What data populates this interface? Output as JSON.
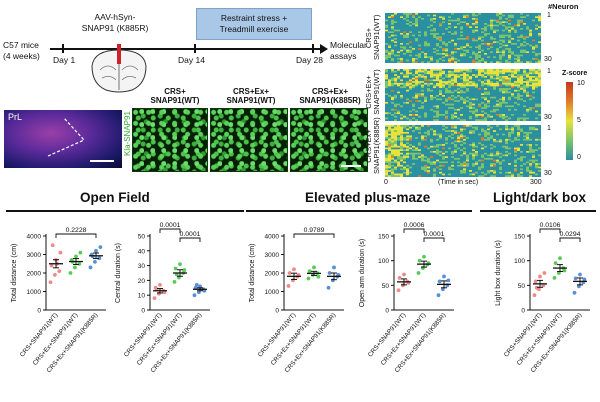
{
  "timeline": {
    "mice": [
      "C57 mice",
      "(4 weeks)"
    ],
    "virus": [
      "AAV-hSyn-",
      "SNAP91 (K885R)"
    ],
    "box": [
      "Restraint stress +",
      "Treadmill exercise"
    ],
    "end": [
      "Molecular",
      "assays"
    ],
    "days": [
      "Day 1",
      "Day 14",
      "Day 28"
    ]
  },
  "micrographs": {
    "prl_label": "PrL",
    "stain_label": "Kla-SNAP91",
    "panels": [
      [
        "CRS+",
        "SNAP91(WT)"
      ],
      [
        "CRS+Ex+",
        "SNAP91(WT)"
      ],
      [
        "CRS+Ex+",
        "SNAP91(K885R)"
      ]
    ]
  },
  "heatmap": {
    "header": "#Neuron",
    "xlabel": "(Time in sec)",
    "x_ticks": [
      "0",
      "300"
    ],
    "groups": [
      {
        "label": [
          "CRS+",
          "SNAP91(WT)"
        ],
        "top": "1",
        "bottom": "30"
      },
      {
        "label": [
          "CRS+Ex+",
          "SNAP91(WT)"
        ],
        "top": "1",
        "bottom": "30"
      },
      {
        "label": [
          "CRS+Ex+",
          "SNAP91(K885R)"
        ],
        "top": "1",
        "bottom": "30"
      }
    ],
    "colorbar": {
      "title": "Z-score",
      "ticks": [
        "10",
        "5",
        "0"
      ],
      "colors": [
        "#2a8fa0",
        "#7cc46a",
        "#e8e23a",
        "#e07b2a",
        "#c23a1a"
      ]
    }
  },
  "sections": [
    "Open Field",
    "Elevated plus-maze",
    "Light/dark box"
  ],
  "group_names": [
    "CRS+SNAP91(WT)",
    "CRS+Ex+SNAP91(WT)",
    "CRS+Ex+SNAP91(K885R)"
  ],
  "group_colors": [
    "#f08a8a",
    "#5cc85c",
    "#5a8fd8"
  ],
  "chart_data": [
    {
      "type": "scatter",
      "ylabel": "Total distance (cm)",
      "ylim": [
        0,
        4000
      ],
      "yticks": [
        "0",
        "1000",
        "2000",
        "3000",
        "4000"
      ],
      "categories": [
        "CRS+SNAP91(WT)",
        "CRS+Ex+SNAP91(WT)",
        "CRS+Ex+SNAP91(K885R)"
      ],
      "means": [
        2500,
        2620,
        2930
      ],
      "sem": [
        220,
        160,
        150
      ],
      "points": [
        [
          1500,
          1900,
          2100,
          2400,
          2700,
          3100,
          3500,
          2500
        ],
        [
          2000,
          2300,
          2500,
          2700,
          2900,
          3100,
          2600
        ],
        [
          2300,
          2600,
          2800,
          3000,
          3200,
          3400,
          2900
        ]
      ],
      "comparisons": [
        {
          "from": 0,
          "to": 2,
          "label": "0.2228"
        }
      ]
    },
    {
      "type": "scatter",
      "ylabel": "Central duration (s)",
      "ylim": [
        0,
        50
      ],
      "yticks": [
        "0",
        "10",
        "20",
        "30",
        "40",
        "50"
      ],
      "categories": [
        "CRS+SNAP91(WT)",
        "CRS+Ex+SNAP91(WT)",
        "CRS+Ex+SNAP91(K885R)"
      ],
      "means": [
        13,
        25,
        14
      ],
      "sem": [
        1.5,
        2.2,
        1.0
      ],
      "points": [
        [
          8,
          11,
          13,
          15,
          17,
          12,
          14
        ],
        [
          19,
          22,
          25,
          28,
          31,
          27,
          24
        ],
        [
          10,
          12,
          14,
          15,
          16,
          13,
          17
        ]
      ],
      "comparisons": [
        {
          "from": 0,
          "to": 1,
          "label": "0.0001"
        },
        {
          "from": 1,
          "to": 2,
          "label": "0.0001"
        }
      ]
    },
    {
      "type": "scatter",
      "ylabel": "Total distance (cm)",
      "ylim": [
        0,
        4000
      ],
      "yticks": [
        "0",
        "1000",
        "2000",
        "3000",
        "4000"
      ],
      "categories": [
        "CRS+SNAP91(WT)",
        "CRS+Ex+SNAP91(WT)",
        "CRS+Ex+SNAP91(K885R)"
      ],
      "means": [
        1820,
        1980,
        1820
      ],
      "sem": [
        170,
        110,
        180
      ],
      "points": [
        [
          1300,
          1600,
          1800,
          2000,
          2200,
          1900
        ],
        [
          1700,
          1900,
          2000,
          2100,
          2300,
          1800
        ],
        [
          1200,
          1600,
          1800,
          2000,
          2300,
          1900
        ]
      ],
      "comparisons": [
        {
          "from": 0,
          "to": 2,
          "label": "0.9789"
        }
      ]
    },
    {
      "type": "scatter",
      "ylabel": "Open arm duration (s)",
      "ylim": [
        0,
        150
      ],
      "yticks": [
        "0",
        "50",
        "100",
        "150"
      ],
      "categories": [
        "CRS+SNAP91(WT)",
        "CRS+Ex+SNAP91(WT)",
        "CRS+Ex+SNAP91(K885R)"
      ],
      "means": [
        57,
        93,
        52
      ],
      "sem": [
        6,
        6,
        7
      ],
      "points": [
        [
          40,
          50,
          58,
          65,
          72,
          55
        ],
        [
          75,
          85,
          92,
          100,
          108,
          95
        ],
        [
          30,
          42,
          50,
          58,
          68,
          60
        ]
      ],
      "comparisons": [
        {
          "from": 0,
          "to": 1,
          "label": "0.0006"
        },
        {
          "from": 1,
          "to": 2,
          "label": "0.0001"
        }
      ]
    },
    {
      "type": "scatter",
      "ylabel": "Light box duration (s)",
      "ylim": [
        0,
        150
      ],
      "yticks": [
        "0",
        "50",
        "100",
        "150"
      ],
      "categories": [
        "CRS+SNAP91(WT)",
        "CRS+Ex+SNAP91(WT)",
        "CRS+Ex+SNAP91(K885R)"
      ],
      "means": [
        53,
        85,
        58
      ],
      "sem": [
        7,
        7,
        7
      ],
      "points": [
        [
          30,
          42,
          50,
          58,
          68,
          75,
          45
        ],
        [
          65,
          75,
          85,
          95,
          105,
          80
        ],
        [
          35,
          48,
          56,
          64,
          72,
          62
        ]
      ],
      "comparisons": [
        {
          "from": 0,
          "to": 1,
          "label": "0.0106"
        },
        {
          "from": 1,
          "to": 2,
          "label": "0.0294"
        }
      ]
    }
  ]
}
